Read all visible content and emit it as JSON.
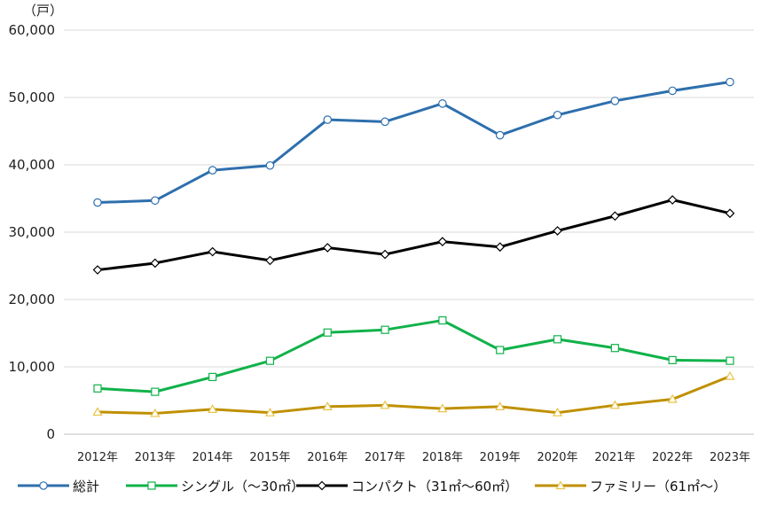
{
  "chart_data": {
    "type": "line",
    "title": "",
    "xlabel": "",
    "ylabel": "",
    "unit_label": "（戸）",
    "categories": [
      "2012年",
      "2013年",
      "2014年",
      "2015年",
      "2016年",
      "2017年",
      "2018年",
      "2019年",
      "2020年",
      "2021年",
      "2022年",
      "2023年"
    ],
    "ylim": [
      0,
      60000
    ],
    "yticks": [
      0,
      10000,
      20000,
      30000,
      40000,
      50000,
      60000
    ],
    "ytick_labels": [
      "0",
      "10,000",
      "20,000",
      "30,000",
      "40,000",
      "50,000",
      "60,000"
    ],
    "grid": true,
    "legend_position": "bottom",
    "series": [
      {
        "name": "総計",
        "color": "#2e6fad",
        "marker": "circle",
        "values": [
          34400,
          34700,
          39200,
          39900,
          46700,
          46400,
          49100,
          44400,
          47400,
          49500,
          51000,
          52300
        ]
      },
      {
        "name": "シングル（～30㎡）",
        "color": "#10b24a",
        "marker": "square",
        "values": [
          6800,
          6300,
          8500,
          10900,
          15100,
          15500,
          16900,
          12500,
          14100,
          12800,
          11000,
          10900
        ]
      },
      {
        "name": "コンパクト（31㎡～60㎡）",
        "color": "#000000",
        "marker": "diamond",
        "values": [
          24400,
          25400,
          27100,
          25800,
          27700,
          26700,
          28600,
          27800,
          30200,
          32400,
          34800,
          32800
        ]
      },
      {
        "name": "ファミリー（61㎡～）",
        "color": "#bf9000",
        "marker": "triangle",
        "values": [
          3300,
          3100,
          3700,
          3200,
          4100,
          4300,
          3800,
          4100,
          3200,
          4300,
          5200,
          8600
        ]
      }
    ]
  }
}
